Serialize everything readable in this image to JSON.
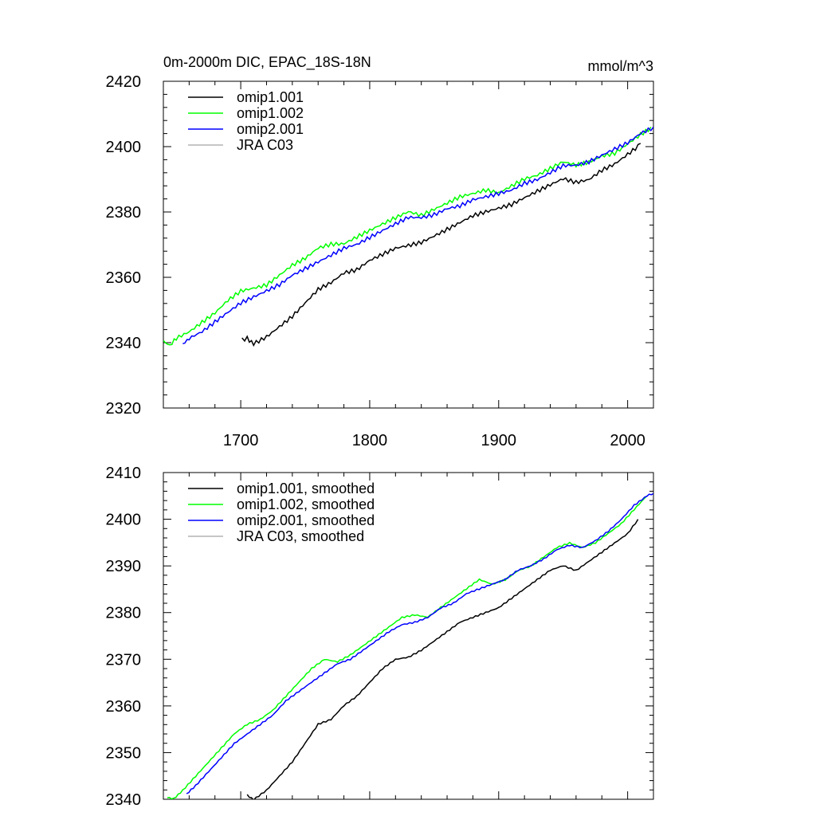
{
  "chart_data": [
    {
      "type": "line",
      "title": "0m-2000m DIC, EPAC_18S-18N",
      "units": "mmol/m^3",
      "xlim": [
        1640,
        2020
      ],
      "ylim": [
        2320,
        2420
      ],
      "x_ticks": [
        1700,
        1800,
        1900,
        2000
      ],
      "y_ticks": [
        2320,
        2340,
        2360,
        2380,
        2400,
        2420
      ],
      "grid": false,
      "legend_position": "top-left",
      "series": [
        {
          "name": "omip1.001",
          "color": "#000000",
          "x": [
            1701,
            1705,
            1710,
            1720,
            1730,
            1740,
            1750,
            1760,
            1770,
            1780,
            1790,
            1800,
            1810,
            1820,
            1830,
            1840,
            1850,
            1860,
            1870,
            1880,
            1890,
            1900,
            1910,
            1920,
            1930,
            1940,
            1950,
            1960,
            1970,
            1980,
            1990,
            2000,
            2010
          ],
          "y": [
            2340.5,
            2341,
            2340,
            2342,
            2345,
            2348,
            2352,
            2356,
            2358,
            2361,
            2362,
            2365,
            2367,
            2369,
            2370,
            2371,
            2373,
            2375,
            2377,
            2379,
            2380,
            2381,
            2382,
            2384,
            2386,
            2388,
            2390,
            2389,
            2390,
            2393,
            2395,
            2398,
            2401
          ]
        },
        {
          "name": "omip1.002",
          "color": "#00ff00",
          "x": [
            1640,
            1645,
            1650,
            1660,
            1670,
            1680,
            1690,
            1700,
            1710,
            1720,
            1730,
            1740,
            1750,
            1760,
            1770,
            1780,
            1790,
            1800,
            1810,
            1820,
            1830,
            1840,
            1850,
            1860,
            1870,
            1880,
            1890,
            1900,
            1910,
            1920,
            1930,
            1940,
            1950,
            1960,
            1970,
            1980,
            1990,
            2000,
            2010,
            2018
          ],
          "y": [
            2340,
            2339.5,
            2341,
            2343,
            2346,
            2349,
            2353,
            2356,
            2357,
            2358,
            2361,
            2364,
            2366,
            2369,
            2370,
            2370,
            2372,
            2374,
            2376,
            2378,
            2380,
            2379,
            2381,
            2383,
            2385,
            2386,
            2387,
            2386,
            2388,
            2390,
            2391,
            2393,
            2395,
            2394,
            2395,
            2397,
            2398,
            2401,
            2404,
            2406
          ]
        },
        {
          "name": "omip2.001",
          "color": "#0000ff",
          "x": [
            1655,
            1660,
            1670,
            1680,
            1690,
            1700,
            1710,
            1720,
            1730,
            1740,
            1750,
            1760,
            1770,
            1780,
            1790,
            1800,
            1810,
            1820,
            1830,
            1840,
            1850,
            1860,
            1870,
            1880,
            1890,
            1900,
            1910,
            1920,
            1930,
            1940,
            1950,
            1960,
            1970,
            1980,
            1990,
            2000,
            2010,
            2020
          ],
          "y": [
            2340,
            2341,
            2343,
            2346,
            2349,
            2352,
            2354,
            2356,
            2358,
            2361,
            2363,
            2365,
            2367,
            2369,
            2370,
            2372,
            2374,
            2376,
            2378,
            2378,
            2379,
            2381,
            2382,
            2384,
            2385,
            2386,
            2387,
            2389,
            2390,
            2392,
            2394,
            2394,
            2395,
            2397,
            2399,
            2401,
            2404,
            2406
          ]
        },
        {
          "name": "JRA C03",
          "color": "#b4b4b4",
          "x": [],
          "y": []
        }
      ]
    },
    {
      "type": "line",
      "xlim": [
        1640,
        2020
      ],
      "ylim": [
        2340,
        2410
      ],
      "y_ticks": [
        2340,
        2350,
        2360,
        2370,
        2380,
        2390,
        2400,
        2410
      ],
      "grid": false,
      "legend_position": "top-left",
      "series": [
        {
          "name": "omip1.001, smoothed",
          "color": "#000000",
          "x": [
            1705,
            1710,
            1720,
            1730,
            1740,
            1750,
            1760,
            1770,
            1780,
            1790,
            1800,
            1810,
            1820,
            1830,
            1840,
            1850,
            1860,
            1870,
            1880,
            1890,
            1900,
            1910,
            1920,
            1930,
            1940,
            1950,
            1960,
            1970,
            1980,
            1990,
            2000,
            2008
          ],
          "y": [
            2340.8,
            2340,
            2342,
            2345,
            2348,
            2352,
            2356,
            2357,
            2360,
            2362,
            2365,
            2368,
            2370,
            2370.5,
            2372,
            2374,
            2376,
            2378,
            2379,
            2380,
            2381,
            2383,
            2385,
            2387,
            2389,
            2390,
            2389,
            2391,
            2393,
            2395,
            2397,
            2400
          ]
        },
        {
          "name": "omip1.002, smoothed",
          "color": "#00ff00",
          "x": [
            1643,
            1648,
            1655,
            1665,
            1675,
            1685,
            1695,
            1705,
            1715,
            1725,
            1735,
            1745,
            1755,
            1765,
            1775,
            1785,
            1795,
            1805,
            1815,
            1825,
            1835,
            1845,
            1855,
            1865,
            1875,
            1885,
            1895,
            1905,
            1915,
            1925,
            1935,
            1945,
            1955,
            1965,
            1975,
            1985,
            1995,
            2005,
            2015
          ],
          "y": [
            2340.5,
            2340,
            2342,
            2345,
            2348,
            2351,
            2354,
            2356,
            2357,
            2359,
            2362,
            2365,
            2368,
            2370,
            2369.5,
            2371,
            2373,
            2375,
            2377,
            2379,
            2379.5,
            2379,
            2381,
            2383,
            2385,
            2387,
            2386,
            2387,
            2389,
            2390,
            2392,
            2394,
            2395,
            2394,
            2395,
            2397,
            2399,
            2402,
            2405
          ]
        },
        {
          "name": "omip2.001, smoothed",
          "color": "#0000ff",
          "x": [
            1658,
            1665,
            1675,
            1685,
            1695,
            1705,
            1715,
            1725,
            1735,
            1745,
            1755,
            1765,
            1775,
            1785,
            1795,
            1805,
            1815,
            1825,
            1835,
            1845,
            1855,
            1865,
            1875,
            1885,
            1895,
            1905,
            1915,
            1925,
            1935,
            1945,
            1955,
            1965,
            1975,
            1985,
            1995,
            2005,
            2015,
            2020
          ],
          "y": [
            2341,
            2343,
            2346,
            2349,
            2352,
            2354,
            2356,
            2358,
            2361,
            2363,
            2365,
            2367,
            2369,
            2370,
            2372,
            2374,
            2376,
            2377.5,
            2378,
            2379,
            2381,
            2382,
            2384,
            2385,
            2386,
            2387,
            2389,
            2390,
            2391.5,
            2393.5,
            2394.5,
            2394,
            2395.5,
            2397.5,
            2400,
            2403,
            2405,
            2405.5
          ]
        },
        {
          "name": "JRA C03, smoothed",
          "color": "#b4b4b4",
          "x": [],
          "y": []
        }
      ]
    }
  ]
}
